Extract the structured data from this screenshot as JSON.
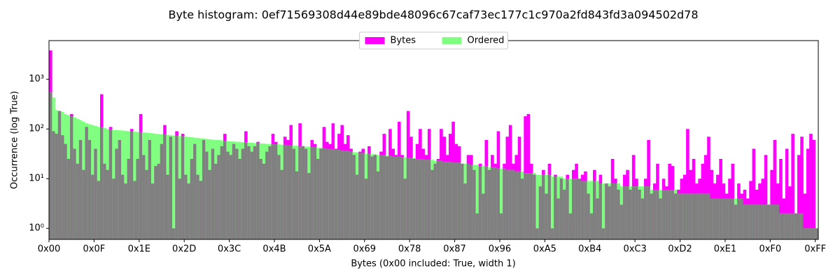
{
  "chart_data": {
    "type": "histogram",
    "title": "Byte histogram: 0ef71569308d44e89bde48096c67caf73ec177c1c970a2fd843fd3a094502d78",
    "xlabel": "Bytes (0x00 included: True, width 1)",
    "ylabel": "Occurrence (log True)",
    "log_y": true,
    "legend": "upper center",
    "overlap_color": "#808080",
    "xlim": [
      0,
      256
    ],
    "ylim": [
      0.6,
      6000
    ],
    "xticks": [
      {
        "value": 0,
        "label": "0x00"
      },
      {
        "value": 15,
        "label": "0x0F"
      },
      {
        "value": 30,
        "label": "0x1E"
      },
      {
        "value": 45,
        "label": "0x2D"
      },
      {
        "value": 60,
        "label": "0x3C"
      },
      {
        "value": 75,
        "label": "0x4B"
      },
      {
        "value": 90,
        "label": "0x5A"
      },
      {
        "value": 105,
        "label": "0x69"
      },
      {
        "value": 120,
        "label": "0x78"
      },
      {
        "value": 135,
        "label": "0x87"
      },
      {
        "value": 150,
        "label": "0x96"
      },
      {
        "value": 165,
        "label": "0xA5"
      },
      {
        "value": 180,
        "label": "0xB4"
      },
      {
        "value": 195,
        "label": "0xC3"
      },
      {
        "value": 210,
        "label": "0xD2"
      },
      {
        "value": 225,
        "label": "0xE1"
      },
      {
        "value": 240,
        "label": "0xF0"
      },
      {
        "value": 255,
        "label": "0xFF"
      }
    ],
    "yticks": [
      {
        "value": 1,
        "label": "10⁰"
      },
      {
        "value": 10,
        "label": "10¹"
      },
      {
        "value": 100,
        "label": "10²"
      },
      {
        "value": 1000,
        "label": "10³"
      }
    ],
    "bins": [
      0,
      1,
      2,
      3,
      4,
      5,
      6,
      7,
      8,
      9,
      10,
      11,
      12,
      13,
      14,
      15,
      16,
      17,
      18,
      19,
      20,
      21,
      22,
      23,
      24,
      25,
      26,
      27,
      28,
      29,
      30,
      31,
      32,
      33,
      34,
      35,
      36,
      37,
      38,
      39,
      40,
      41,
      42,
      43,
      44,
      45,
      46,
      47,
      48,
      49,
      50,
      51,
      52,
      53,
      54,
      55,
      56,
      57,
      58,
      59,
      60,
      61,
      62,
      63,
      64,
      65,
      66,
      67,
      68,
      69,
      70,
      71,
      72,
      73,
      74,
      75,
      76,
      77,
      78,
      79,
      80,
      81,
      82,
      83,
      84,
      85,
      86,
      87,
      88,
      89,
      90,
      91,
      92,
      93,
      94,
      95,
      96,
      97,
      98,
      99,
      100,
      101,
      102,
      103,
      104,
      105,
      106,
      107,
      108,
      109,
      110,
      111,
      112,
      113,
      114,
      115,
      116,
      117,
      118,
      119,
      120,
      121,
      122,
      123,
      124,
      125,
      126,
      127,
      128,
      129,
      130,
      131,
      132,
      133,
      134,
      135,
      136,
      137,
      138,
      139,
      140,
      141,
      142,
      143,
      144,
      145,
      146,
      147,
      148,
      149,
      150,
      151,
      152,
      153,
      154,
      155,
      156,
      157,
      158,
      159,
      160,
      161,
      162,
      163,
      164,
      165,
      166,
      167,
      168,
      169,
      170,
      171,
      172,
      173,
      174,
      175,
      176,
      177,
      178,
      179,
      180,
      181,
      182,
      183,
      184,
      185,
      186,
      187,
      188,
      189,
      190,
      191,
      192,
      193,
      194,
      195,
      196,
      197,
      198,
      199,
      200,
      201,
      202,
      203,
      204,
      205,
      206,
      207,
      208,
      209,
      210,
      211,
      212,
      213,
      214,
      215,
      216,
      217,
      218,
      219,
      220,
      221,
      222,
      223,
      224,
      225,
      226,
      227,
      228,
      229,
      230,
      231,
      232,
      233,
      234,
      235,
      236,
      237,
      238,
      239,
      240,
      241,
      242,
      243,
      244,
      245,
      246,
      247,
      248,
      249,
      250,
      251,
      252,
      253,
      254,
      255,
      256
    ],
    "series": [
      {
        "name": "Bytes",
        "color": "#ff00ff",
        "values": [
          3800,
          90,
          80,
          230,
          75,
          50,
          25,
          200,
          40,
          20,
          60,
          15,
          110,
          60,
          12,
          40,
          9,
          500,
          20,
          15,
          110,
          10,
          40,
          60,
          12,
          8,
          25,
          100,
          9,
          25,
          200,
          30,
          15,
          60,
          8,
          18,
          20,
          50,
          120,
          12,
          70,
          1,
          90,
          10,
          80,
          12,
          8,
          25,
          50,
          12,
          9,
          60,
          35,
          15,
          40,
          20,
          30,
          45,
          80,
          35,
          30,
          50,
          40,
          25,
          40,
          90,
          45,
          35,
          45,
          55,
          25,
          20,
          35,
          45,
          80,
          55,
          30,
          15,
          70,
          60,
          120,
          40,
          14,
          130,
          45,
          40,
          13,
          60,
          50,
          25,
          40,
          110,
          55,
          50,
          130,
          40,
          80,
          120,
          50,
          75,
          40,
          30,
          12,
          35,
          40,
          10,
          45,
          28,
          30,
          14,
          35,
          80,
          28,
          100,
          40,
          30,
          140,
          30,
          10,
          230,
          70,
          25,
          50,
          100,
          40,
          30,
          100,
          15,
          20,
          25,
          100,
          70,
          30,
          80,
          140,
          50,
          45,
          20,
          8,
          30,
          30,
          15,
          2,
          20,
          5,
          60,
          15,
          30,
          20,
          90,
          2,
          20,
          70,
          120,
          20,
          30,
          70,
          10,
          180,
          200,
          20,
          12,
          1,
          7,
          15,
          5,
          20,
          1,
          12,
          4,
          10,
          6,
          12,
          2,
          15,
          20,
          10,
          12,
          14,
          5,
          2,
          15,
          4,
          12,
          1,
          8,
          7,
          25,
          10,
          6,
          3,
          12,
          15,
          6,
          30,
          10,
          6,
          4,
          10,
          60,
          5,
          8,
          20,
          4,
          10,
          7,
          20,
          18,
          5,
          6,
          10,
          12,
          100,
          15,
          25,
          8,
          10,
          20,
          30,
          70,
          15,
          8,
          12,
          25,
          8,
          5,
          10,
          20,
          3,
          8,
          5,
          6,
          4,
          9,
          40,
          6,
          8,
          10,
          30,
          3,
          15,
          60,
          8,
          25,
          4,
          40,
          7,
          80,
          2,
          30,
          70,
          5,
          40,
          80,
          60,
          1
        ]
      },
      {
        "name": "Ordered",
        "color": "#80ff80",
        "values": [
          560,
          430,
          240,
          230,
          220,
          200,
          190,
          180,
          170,
          160,
          150,
          140,
          130,
          125,
          120,
          115,
          110,
          108,
          105,
          100,
          98,
          96,
          95,
          94,
          93,
          92,
          90,
          89,
          88,
          87,
          86,
          85,
          84,
          83,
          82,
          80,
          79,
          78,
          77,
          76,
          75,
          74,
          73,
          72,
          72,
          70,
          69,
          68,
          67,
          66,
          65,
          64,
          63,
          62,
          61,
          60,
          60,
          59,
          58,
          57,
          56,
          56,
          55,
          55,
          54,
          54,
          53,
          53,
          52,
          52,
          51,
          51,
          50,
          50,
          50,
          49,
          49,
          48,
          48,
          47,
          47,
          46,
          46,
          45,
          45,
          44,
          44,
          43,
          43,
          42,
          42,
          41,
          40,
          40,
          39,
          38,
          38,
          37,
          36,
          36,
          35,
          34,
          34,
          33,
          33,
          32,
          32,
          31,
          31,
          30,
          30,
          30,
          29,
          29,
          28,
          28,
          28,
          27,
          27,
          26,
          26,
          26,
          25,
          25,
          25,
          24,
          24,
          24,
          23,
          23,
          23,
          22,
          22,
          22,
          21,
          21,
          21,
          20,
          20,
          20,
          19,
          19,
          19,
          18,
          18,
          18,
          17,
          17,
          17,
          16,
          16,
          16,
          15,
          15,
          15,
          14,
          14,
          14,
          13,
          13,
          13,
          13,
          12,
          12,
          12,
          12,
          12,
          11,
          11,
          11,
          11,
          10,
          10,
          10,
          10,
          10,
          10,
          9,
          9,
          9,
          9,
          9,
          9,
          8,
          8,
          8,
          8,
          8,
          8,
          8,
          7,
          7,
          7,
          7,
          7,
          7,
          7,
          7,
          7,
          7,
          6,
          6,
          6,
          6,
          6,
          6,
          6,
          6,
          6,
          5,
          5,
          5,
          5,
          5,
          5,
          5,
          5,
          5,
          5,
          5,
          4,
          4,
          4,
          4,
          4,
          4,
          4,
          4,
          4,
          4,
          4,
          3,
          3,
          3,
          3,
          3,
          3,
          3,
          3,
          3,
          3,
          3,
          3,
          2,
          2,
          2,
          2,
          2,
          2,
          2,
          2,
          1,
          1,
          1,
          1,
          1
        ]
      }
    ]
  }
}
